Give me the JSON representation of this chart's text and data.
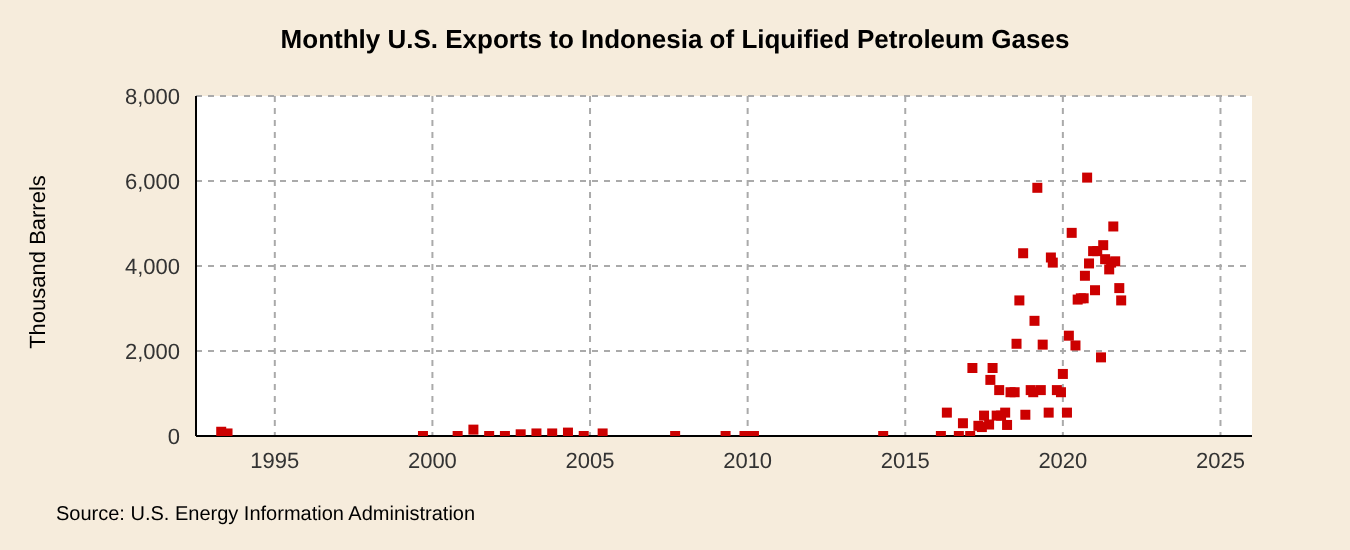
{
  "chart_data": {
    "type": "scatter",
    "title": "Monthly U.S. Exports to Indonesia of Liquified Petroleum Gases",
    "ylabel": "Thousand Barrels",
    "annotations": [
      "Source: U.S. Energy Information Administration"
    ],
    "x": [
      1993.3,
      1993.5,
      1999.7,
      2000.8,
      2001.3,
      2001.8,
      2002.3,
      2002.8,
      2003.3,
      2003.8,
      2004.3,
      2004.8,
      2005.4,
      2007.7,
      2009.3,
      2009.9,
      2010.2,
      2014.3,
      2016.13,
      2016.32,
      2016.7,
      2016.83,
      2017.06,
      2017.13,
      2017.32,
      2017.43,
      2017.5,
      2017.66,
      2017.7,
      2017.77,
      2017.9,
      2017.98,
      2018.04,
      2018.17,
      2018.23,
      2018.34,
      2018.47,
      2018.53,
      2018.62,
      2018.74,
      2018.81,
      2018.98,
      2019.06,
      2019.1,
      2019.19,
      2019.3,
      2019.36,
      2019.55,
      2019.62,
      2019.68,
      2019.81,
      2019.94,
      2020.0,
      2020.13,
      2020.19,
      2020.28,
      2020.4,
      2020.47,
      2020.57,
      2020.66,
      2020.7,
      2020.77,
      2020.83,
      2020.96,
      2021.02,
      2021.09,
      2021.21,
      2021.28,
      2021.34,
      2021.47,
      2021.53,
      2021.6,
      2021.66,
      2021.79,
      2021.85
    ],
    "series": [
      {
        "color": "#cc0000",
        "values": [
          100,
          60,
          0,
          0,
          150,
          0,
          0,
          40,
          60,
          60,
          80,
          0,
          60,
          0,
          0,
          0,
          0,
          0,
          0,
          550,
          0,
          300,
          0,
          1600,
          240,
          210,
          480,
          270,
          1320,
          1600,
          480,
          1080,
          480,
          550,
          260,
          1030,
          1030,
          2170,
          3190,
          4300,
          500,
          1080,
          1030,
          2710,
          5840,
          1080,
          2150,
          550,
          4200,
          4080,
          1080,
          1030,
          1460,
          550,
          2360,
          4780,
          2130,
          3210,
          3240,
          3240,
          3770,
          6080,
          4060,
          4350,
          3430,
          4350,
          1850,
          4490,
          4160,
          3920,
          4080,
          4930,
          4110,
          3480,
          3190
        ]
      }
    ],
    "xlim": [
      1992.5,
      2026
    ],
    "xticks": [
      1995,
      2000,
      2005,
      2010,
      2015,
      2020,
      2025
    ],
    "ylim": [
      0,
      8000
    ],
    "yticks": [
      0,
      {
        "value": 2000,
        "label": "2,000"
      },
      {
        "value": 4000,
        "label": "4,000"
      },
      {
        "value": 6000,
        "label": "6,000"
      },
      {
        "value": 8000,
        "label": "8,000"
      }
    ],
    "grid": true,
    "marker": "square"
  }
}
